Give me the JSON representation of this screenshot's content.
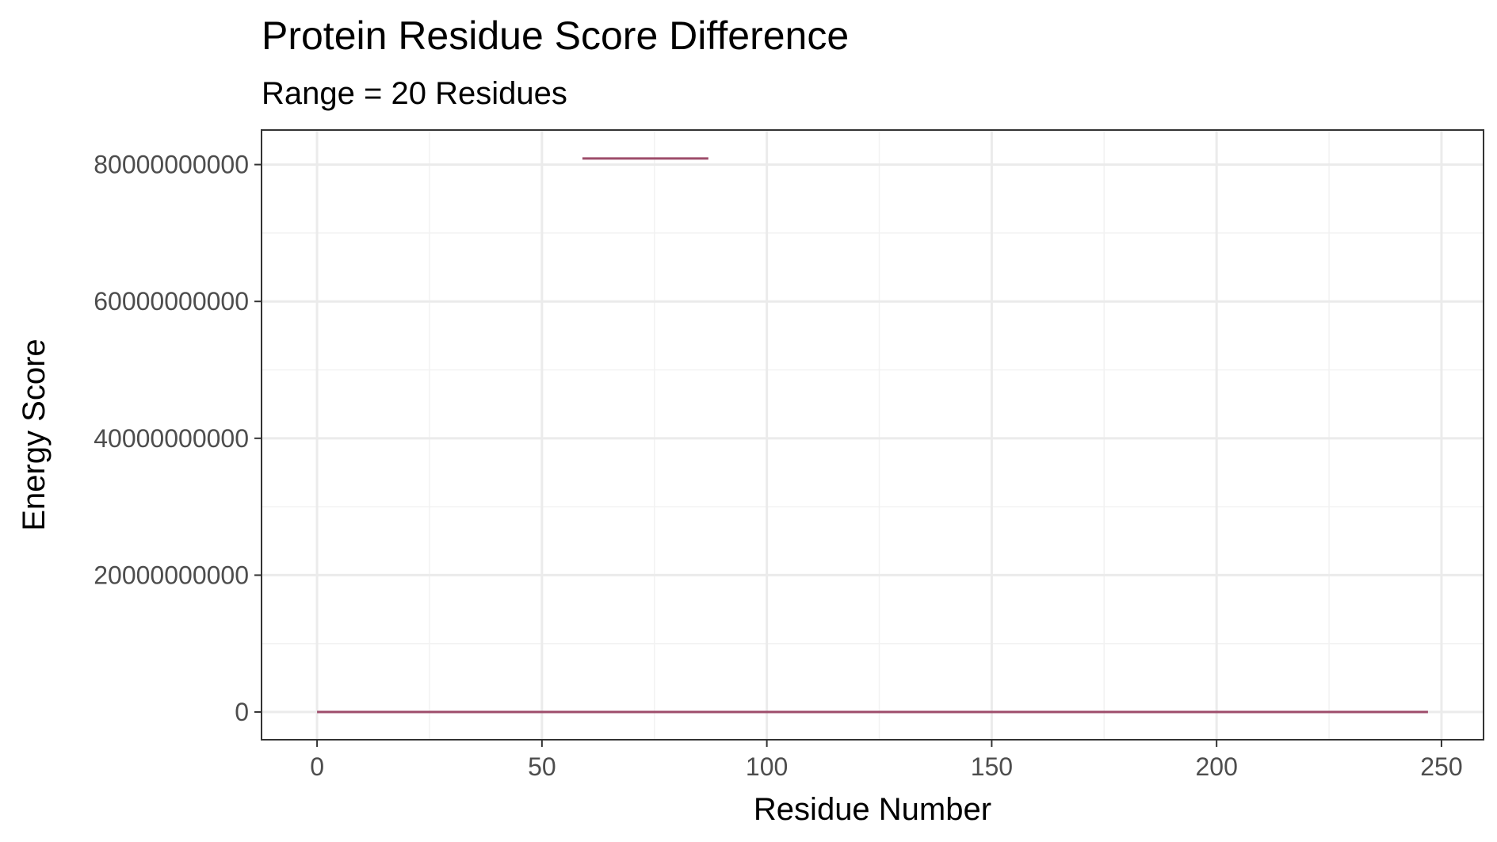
{
  "chart_data": {
    "type": "line",
    "title": "Protein Residue Score Difference",
    "subtitle": "Range = 20 Residues",
    "xlabel": "Residue Number",
    "ylabel": "Energy Score",
    "xlim": [
      -12.35,
      259.35
    ],
    "ylim": [
      -4050000000,
      85050000000
    ],
    "x_ticks": [
      0,
      50,
      100,
      150,
      200,
      250
    ],
    "x_tick_labels": [
      "0",
      "50",
      "100",
      "150",
      "200",
      "250"
    ],
    "x_minor_ticks": [
      25,
      75,
      125,
      175,
      225
    ],
    "y_ticks": [
      0,
      20000000000,
      40000000000,
      60000000000,
      80000000000
    ],
    "y_tick_labels": [
      "0",
      "20000000000",
      "40000000000",
      "60000000000",
      "80000000000"
    ],
    "y_minor_ticks": [
      10000000000,
      30000000000,
      50000000000,
      70000000000
    ],
    "grid": true,
    "series_color": "#9e4d6b",
    "segments": [
      {
        "x": [
          0,
          247
        ],
        "y": [
          0,
          0
        ]
      },
      {
        "x": [
          59,
          87
        ],
        "y": [
          80900000000,
          80900000000
        ]
      }
    ]
  }
}
